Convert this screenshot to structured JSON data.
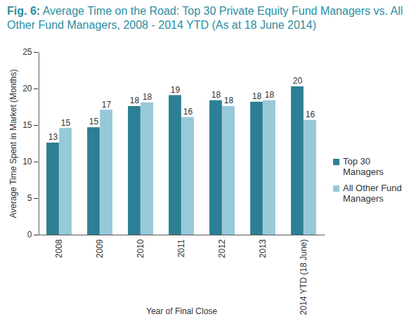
{
  "chart_data": {
    "type": "bar",
    "title": "Fig. 6: Average Time on the Road: Top 30 Private Equity Fund Managers vs. All Other Fund Managers, 2008 - 2014 YTD (As at 18 June 2014)",
    "x_label": "Year of Final Close",
    "y_label": "Average Time Spent in Market (Months)",
    "categories": [
      "2008",
      "2009",
      "2010",
      "2011",
      "2012",
      "2013",
      "2014 YTD (18 June)"
    ],
    "series": [
      {
        "name": "Top 30 Managers",
        "color": "#2d7f95",
        "values": [
          12.6,
          14.7,
          17.6,
          19.1,
          18.4,
          18.2,
          20.3
        ],
        "value_labels": [
          "13",
          "15",
          "18",
          "19",
          "18",
          "18",
          "20"
        ]
      },
      {
        "name": "All Other Fund Managers",
        "color": "#97c9d9",
        "values": [
          14.6,
          17.1,
          18.1,
          16.1,
          17.6,
          18.4,
          15.7
        ],
        "value_labels": [
          "15",
          "17",
          "18",
          "16",
          "18",
          "18",
          "16"
        ]
      }
    ],
    "ylim": [
      0,
      25
    ],
    "yticks": [
      0,
      5,
      10,
      15,
      20,
      25
    ],
    "grid": false,
    "legend": "right",
    "data_labels": true
  }
}
